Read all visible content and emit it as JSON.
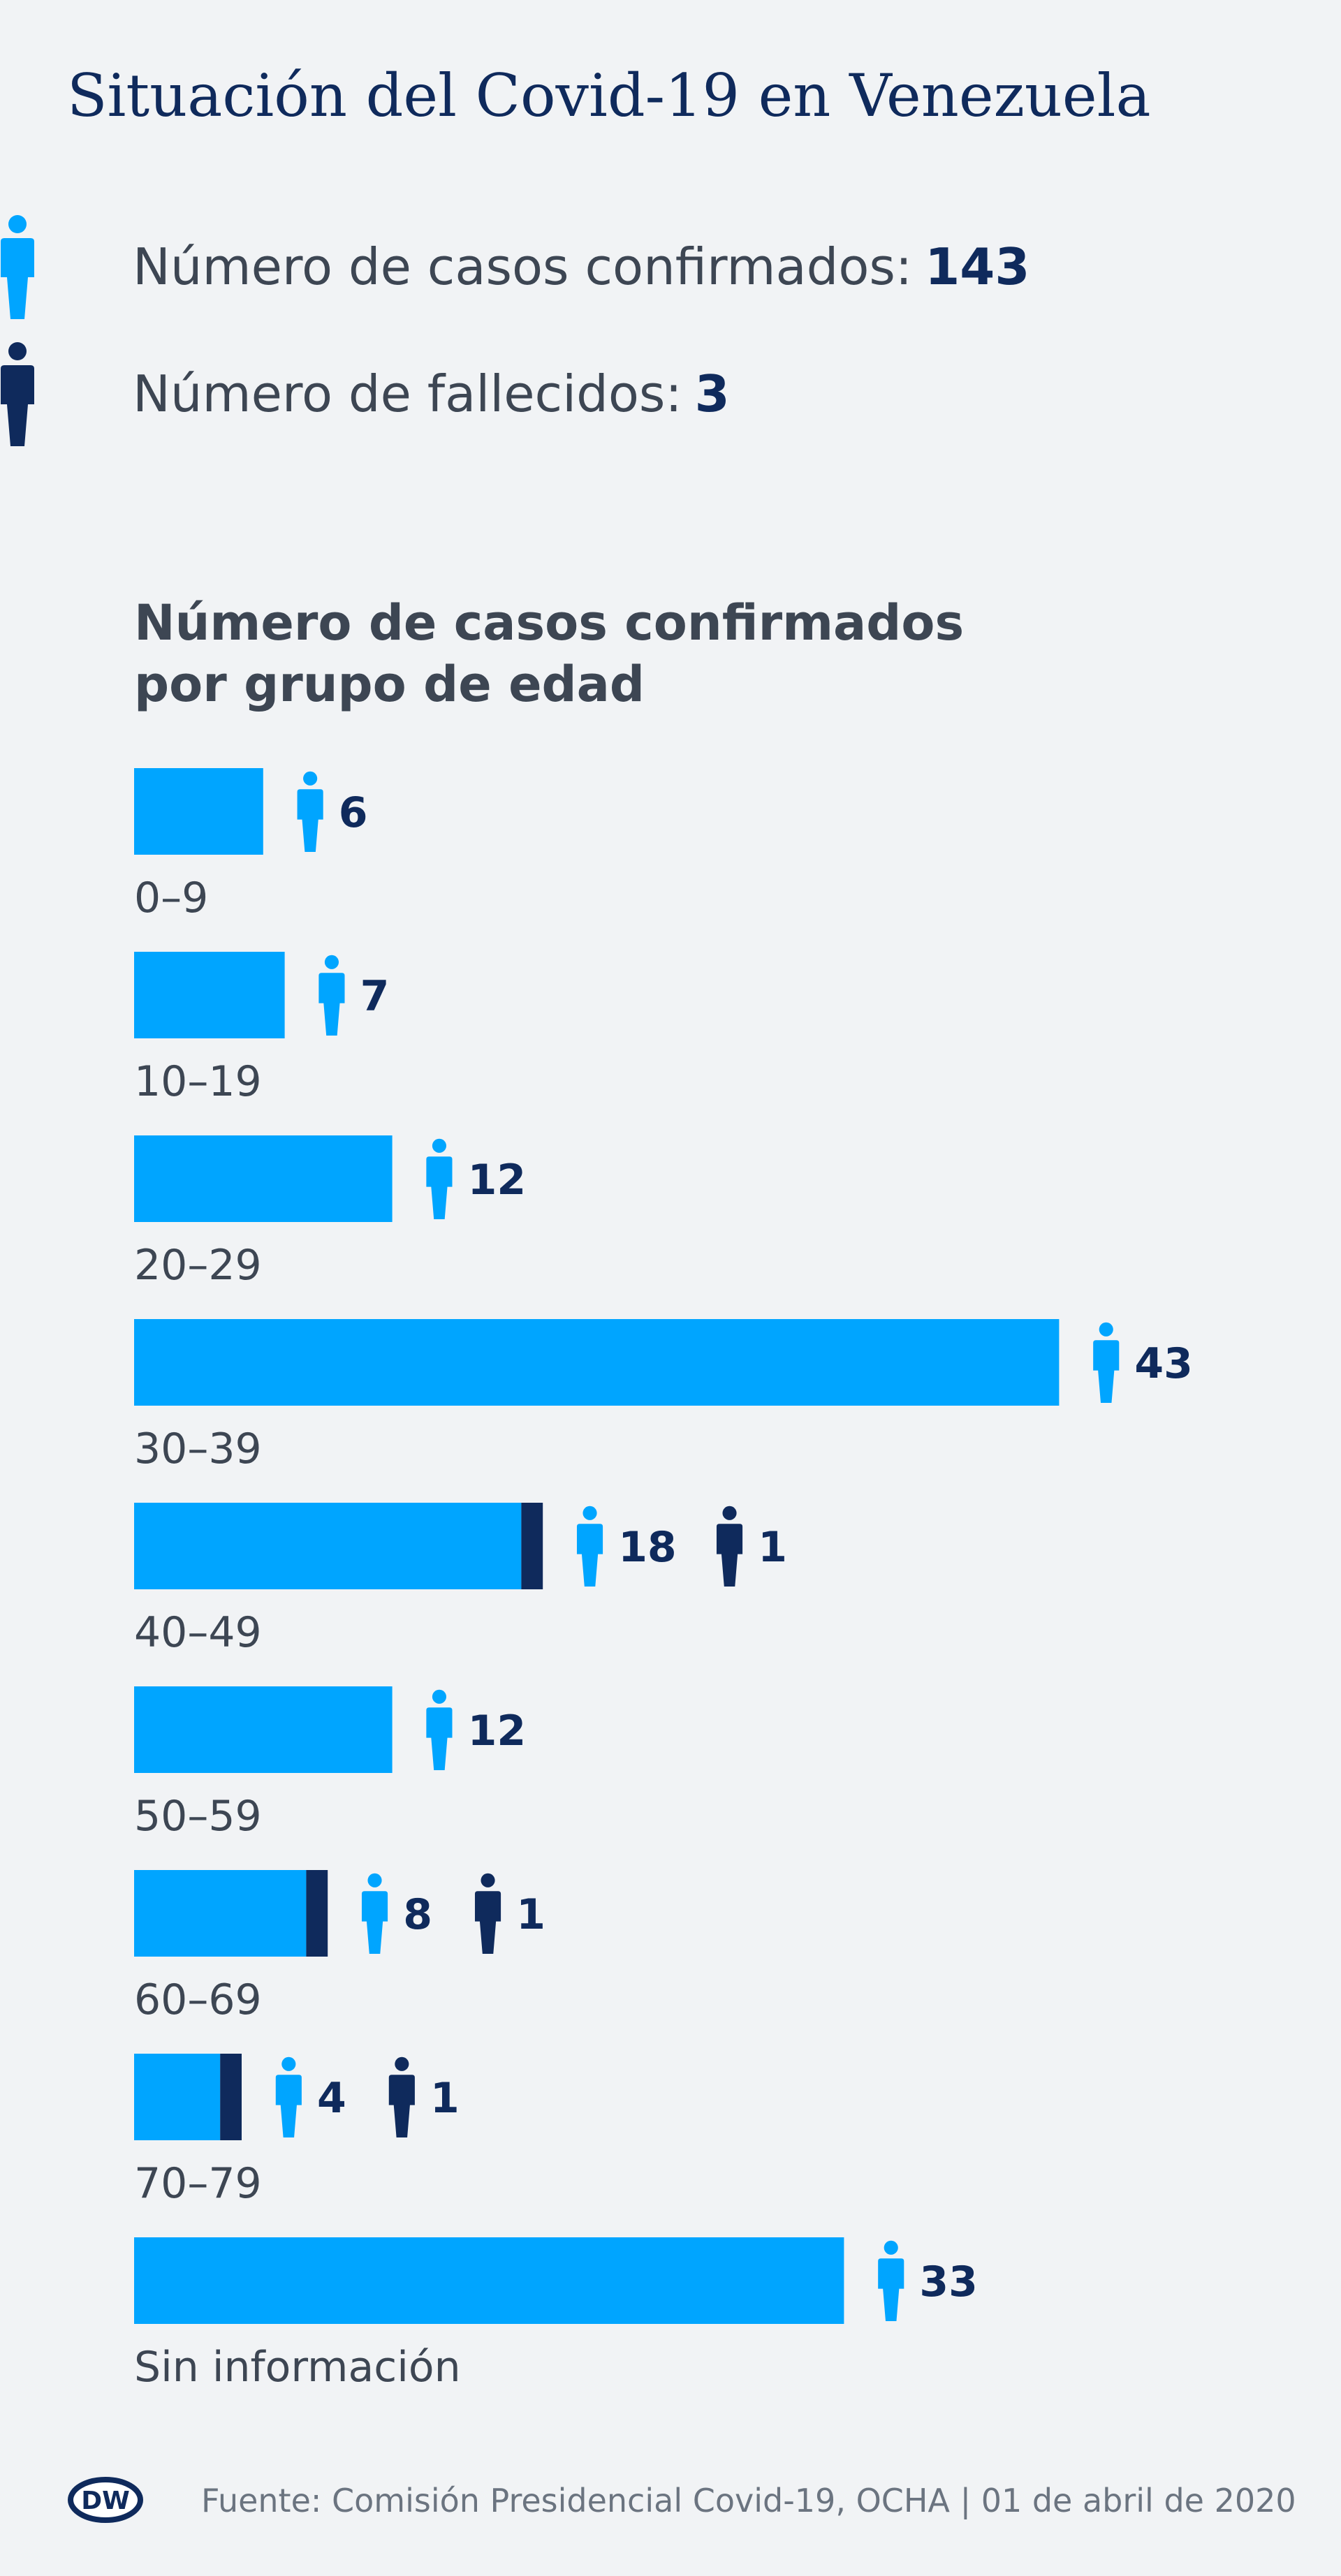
{
  "title": "Situación del Covid-19 en Venezuela",
  "legend": {
    "confirmed_label": "Número de casos confirmados:",
    "confirmed_value": "143",
    "deaths_label": "Número de fallecidos:",
    "deaths_value": "3"
  },
  "subtitle": {
    "line1": "Número de casos confirmados",
    "line2": "por grupo de edad"
  },
  "colors": {
    "confirmed": "#00a5ff",
    "deaths": "#0f2a5c",
    "text": "#3d4653"
  },
  "icons": {
    "confirmed": "person-icon",
    "deaths": "person-icon",
    "logo": "dw-logo"
  },
  "chart_data": {
    "type": "bar",
    "orientation": "horizontal",
    "stacked": true,
    "categories": [
      "0–9",
      "10–19",
      "20–29",
      "30–39",
      "40–49",
      "50–59",
      "60–69",
      "70–79",
      "Sin información"
    ],
    "series": [
      {
        "name": "Número de casos confirmados",
        "values": [
          6,
          7,
          12,
          43,
          18,
          12,
          8,
          4,
          33
        ],
        "color": "#00a5ff"
      },
      {
        "name": "Número de fallecidos",
        "values": [
          0,
          0,
          0,
          0,
          1,
          0,
          1,
          1,
          0
        ],
        "color": "#0f2a5c"
      }
    ],
    "grid": false,
    "legend": "top-left",
    "data_labels": true
  },
  "footer": {
    "logo_text": "DW",
    "source": "Fuente: Comisión Presidencial Covid-19, OCHA | 01 de abril de 2020"
  }
}
